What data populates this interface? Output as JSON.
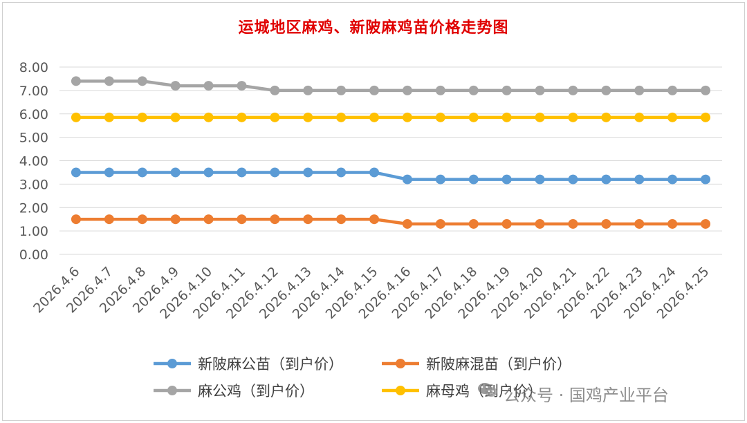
{
  "colors": {
    "xinling_gong": "#5b9bd5",
    "xinling_hun": "#ed7d31",
    "ma_gongji": "#a5a5a5",
    "ma_muji": "#ffc000",
    "title": "#e00000",
    "grid": "#d9d9d9"
  },
  "watermark": {
    "text": "公众号 · 国鸡产业平台",
    "icon": "wechat-icon"
  },
  "chart_data": {
    "type": "line",
    "title": "运城地区麻鸡、新陂麻鸡苗价格走势图",
    "xlabel": "",
    "ylabel": "",
    "ylim": [
      0,
      8
    ],
    "yticks": [
      "0.00",
      "1.00",
      "2.00",
      "3.00",
      "4.00",
      "5.00",
      "6.00",
      "7.00",
      "8.00"
    ],
    "grid": true,
    "legend_position": "bottom",
    "categories": [
      "2026.4.6",
      "2026.4.7",
      "2026.4.8",
      "2026.4.9",
      "2026.4.10",
      "2026.4.11",
      "2026.4.12",
      "2026.4.13",
      "2026.4.14",
      "2026.4.15",
      "2026.4.16",
      "2026.4.17",
      "2026.4.18",
      "2026.4.19",
      "2026.4.20",
      "2026.4.21",
      "2026.4.22",
      "2026.4.23",
      "2026.4.24",
      "2026.4.25"
    ],
    "series": [
      {
        "name": "新陂麻公苗（到户价）",
        "color": "#5b9bd5",
        "values": [
          3.5,
          3.5,
          3.5,
          3.5,
          3.5,
          3.5,
          3.5,
          3.5,
          3.5,
          3.5,
          3.2,
          3.2,
          3.2,
          3.2,
          3.2,
          3.2,
          3.2,
          3.2,
          3.2,
          3.2
        ]
      },
      {
        "name": "新陂麻混苗（到户价）",
        "color": "#ed7d31",
        "values": [
          1.5,
          1.5,
          1.5,
          1.5,
          1.5,
          1.5,
          1.5,
          1.5,
          1.5,
          1.5,
          1.3,
          1.3,
          1.3,
          1.3,
          1.3,
          1.3,
          1.3,
          1.3,
          1.3,
          1.3
        ]
      },
      {
        "name": "麻公鸡（到户价）",
        "color": "#a5a5a5",
        "values": [
          7.4,
          7.4,
          7.4,
          7.2,
          7.2,
          7.2,
          7.0,
          7.0,
          7.0,
          7.0,
          7.0,
          7.0,
          7.0,
          7.0,
          7.0,
          7.0,
          7.0,
          7.0,
          7.0,
          7.0
        ]
      },
      {
        "name": "麻母鸡（到户价）",
        "color": "#ffc000",
        "values": [
          5.85,
          5.85,
          5.85,
          5.85,
          5.85,
          5.85,
          5.85,
          5.85,
          5.85,
          5.85,
          5.85,
          5.85,
          5.85,
          5.85,
          5.85,
          5.85,
          5.85,
          5.85,
          5.85,
          5.85
        ]
      }
    ]
  }
}
